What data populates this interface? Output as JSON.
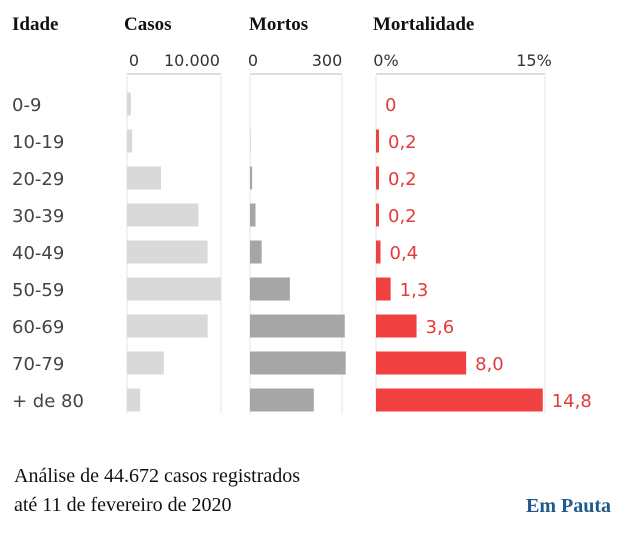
{
  "headers": {
    "age": "Idade",
    "cases": "Casos",
    "deaths": "Mortos",
    "mortality": "Mortalidade"
  },
  "colors": {
    "cases": "#d9d9d9",
    "deaths": "#a6a6a6",
    "mortality": "#f04040",
    "mortality_text": "#e23b3b",
    "brand": "#1f5a8c"
  },
  "chart_data": [
    {
      "type": "bar",
      "orientation": "horizontal",
      "title": "Casos",
      "categories": [
        "0-9",
        "10-19",
        "20-29",
        "30-39",
        "40-49",
        "50-59",
        "60-69",
        "70-79",
        "+ de 80"
      ],
      "values": [
        416,
        549,
        3619,
        7600,
        8571,
        10008,
        8583,
        3918,
        1408
      ],
      "xlim": [
        0,
        10000
      ],
      "tick_labels": [
        "0",
        "10.000"
      ]
    },
    {
      "type": "bar",
      "orientation": "horizontal",
      "title": "Mortos",
      "categories": [
        "0-9",
        "10-19",
        "20-29",
        "30-39",
        "40-49",
        "50-59",
        "60-69",
        "70-79",
        "+ de 80"
      ],
      "values": [
        0,
        1,
        7,
        18,
        38,
        130,
        309,
        312,
        208
      ],
      "xlim": [
        0,
        300
      ],
      "tick_labels": [
        "0",
        "300"
      ]
    },
    {
      "type": "bar",
      "orientation": "horizontal",
      "title": "Mortalidade",
      "categories": [
        "0-9",
        "10-19",
        "20-29",
        "30-39",
        "40-49",
        "50-59",
        "60-69",
        "70-79",
        "+ de 80"
      ],
      "values": [
        0,
        0.2,
        0.2,
        0.2,
        0.4,
        1.3,
        3.6,
        8.0,
        14.8
      ],
      "value_labels": [
        "0",
        "0,2",
        "0,2",
        "0,2",
        "0,4",
        "1,3",
        "3,6",
        "8,0",
        "14,8"
      ],
      "xlim": [
        0,
        15
      ],
      "tick_labels": [
        "0%",
        "15%"
      ]
    }
  ],
  "footnote": {
    "line1": "Análise de 44.672 casos registrados",
    "line2": "até 11 de fevereiro de 2020"
  },
  "brand": "Em Pauta"
}
